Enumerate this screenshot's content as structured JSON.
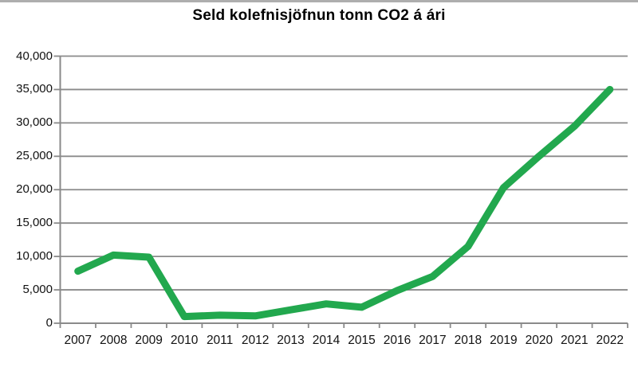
{
  "page": {
    "background_color": "#ffffff",
    "top_border_color": "#aeaeae"
  },
  "chart_data": {
    "type": "line",
    "title": "Seld kolefnisjöfnun tonn CO2 á ári",
    "categories": [
      "2007",
      "2008",
      "2009",
      "2010",
      "2011",
      "2012",
      "2013",
      "2014",
      "2015",
      "2016",
      "2017",
      "2018",
      "2019",
      "2020",
      "2021",
      "2022"
    ],
    "series": [
      {
        "name": "Seld kolefnisjöfnun tonn CO2 á ári",
        "values": [
          7800,
          10200,
          9900,
          1000,
          1200,
          1100,
          2000,
          2900,
          2400,
          4900,
          7000,
          11500,
          20300,
          25000,
          29500,
          35000
        ],
        "color": "#22a84e"
      }
    ],
    "xlabel": "",
    "ylabel": "",
    "ylim": [
      0,
      40000
    ],
    "ytick_interval": 5000,
    "ytick_labels": [
      "0",
      "5,000",
      "10,000",
      "15,000",
      "20,000",
      "25,000",
      "30,000",
      "35,000",
      "40,000"
    ],
    "grid": true,
    "gridline_color": "#8a8a8a",
    "axis_color": "#8a8a8a",
    "tick_color": "#8a8a8a",
    "legend_position": "none",
    "line_width": 9
  }
}
